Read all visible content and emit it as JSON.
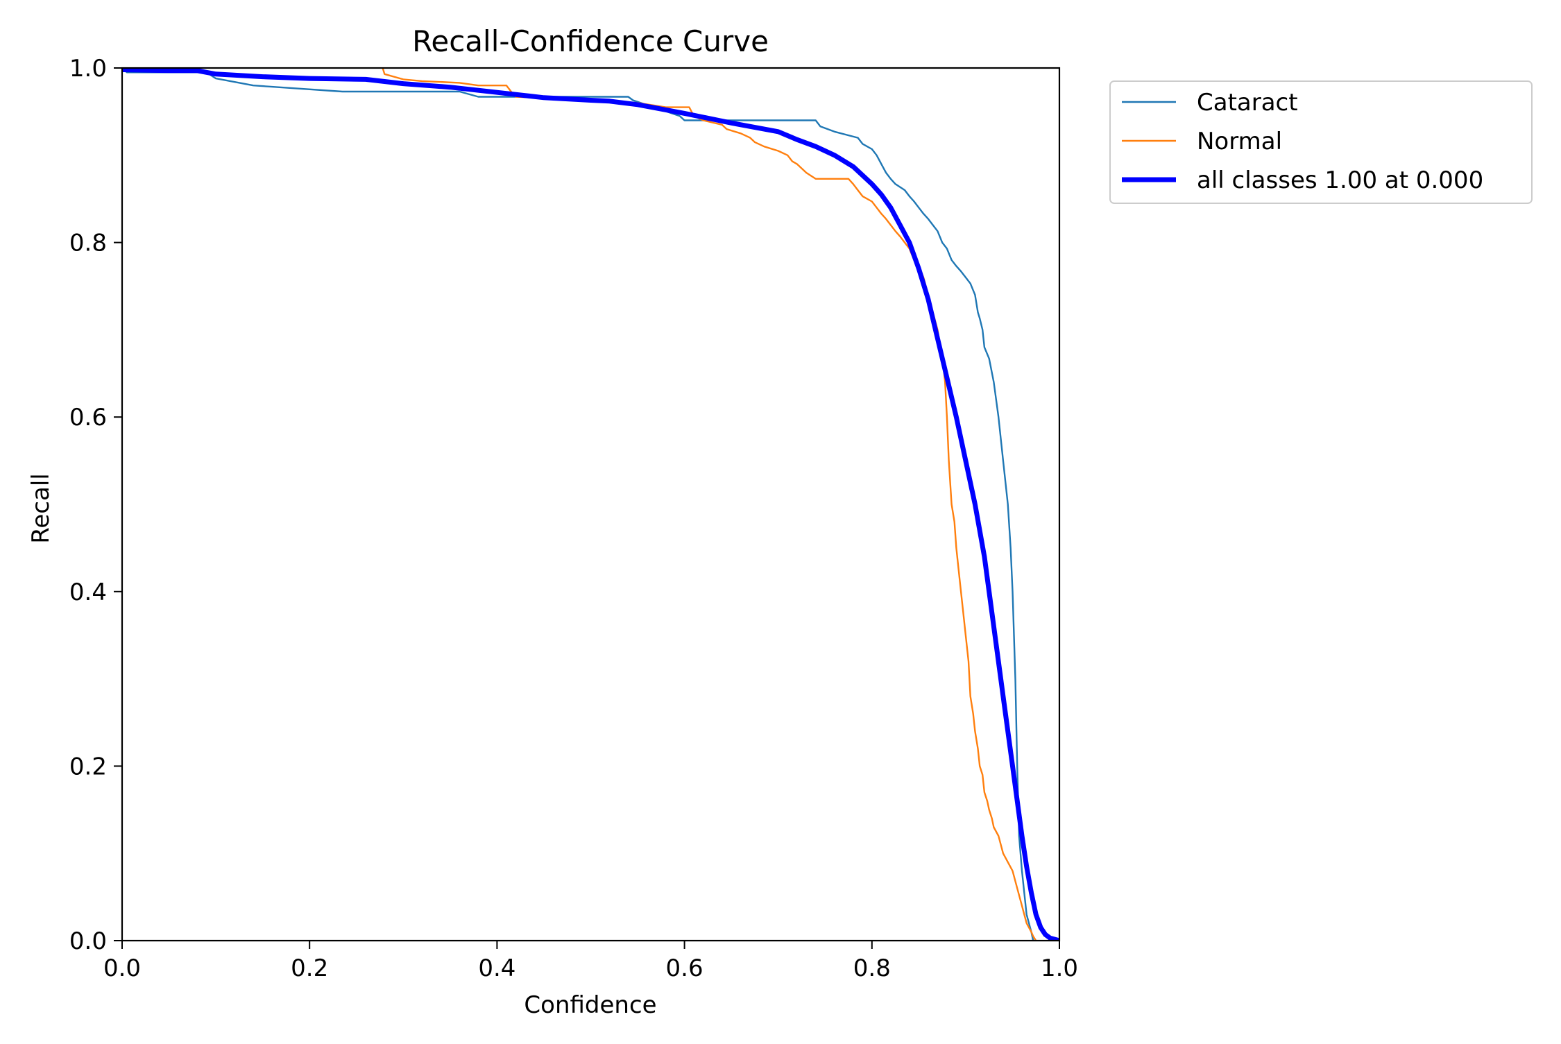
{
  "chart_data": {
    "type": "line",
    "title": "Recall-Confidence Curve",
    "xlabel": "Confidence",
    "ylabel": "Recall",
    "xlim": [
      0,
      1
    ],
    "ylim": [
      0,
      1
    ],
    "xticks": [
      "0.0",
      "0.2",
      "0.4",
      "0.6",
      "0.8",
      "1.0"
    ],
    "yticks": [
      "0.0",
      "0.2",
      "0.4",
      "0.6",
      "0.8",
      "1.0"
    ],
    "grid": false,
    "legend_position": "outside-upper-right",
    "series": [
      {
        "name": "Cataract",
        "color": "#1f77b4",
        "style": "thin",
        "x": [
          0.0,
          0.005,
          0.09,
          0.1,
          0.14,
          0.235,
          0.36,
          0.38,
          0.54,
          0.545,
          0.595,
          0.6,
          0.74,
          0.745,
          0.76,
          0.785,
          0.79,
          0.8,
          0.805,
          0.81,
          0.815,
          0.82,
          0.825,
          0.835,
          0.84,
          0.845,
          0.85,
          0.855,
          0.86,
          0.865,
          0.87,
          0.875,
          0.88,
          0.885,
          0.89,
          0.895,
          0.9,
          0.905,
          0.91,
          0.913,
          0.915,
          0.918,
          0.92,
          0.925,
          0.93,
          0.935,
          0.94,
          0.945,
          0.948,
          0.95,
          0.953,
          0.955,
          0.957,
          0.96,
          0.963,
          0.965,
          0.97,
          0.972
        ],
        "y": [
          1.0,
          0.995,
          0.995,
          0.988,
          0.98,
          0.973,
          0.973,
          0.967,
          0.967,
          0.963,
          0.945,
          0.94,
          0.94,
          0.933,
          0.927,
          0.92,
          0.913,
          0.907,
          0.9,
          0.89,
          0.88,
          0.873,
          0.867,
          0.86,
          0.853,
          0.847,
          0.84,
          0.833,
          0.827,
          0.82,
          0.813,
          0.8,
          0.793,
          0.78,
          0.773,
          0.767,
          0.76,
          0.753,
          0.74,
          0.72,
          0.713,
          0.7,
          0.68,
          0.667,
          0.64,
          0.6,
          0.55,
          0.5,
          0.45,
          0.4,
          0.3,
          0.2,
          0.12,
          0.08,
          0.05,
          0.03,
          0.01,
          0.0
        ]
      },
      {
        "name": "Normal",
        "color": "#ff7f0e",
        "style": "thin",
        "x": [
          0.278,
          0.28,
          0.3,
          0.32,
          0.36,
          0.38,
          0.41,
          0.415,
          0.42,
          0.5,
          0.55,
          0.58,
          0.605,
          0.61,
          0.62,
          0.64,
          0.645,
          0.66,
          0.67,
          0.675,
          0.685,
          0.7,
          0.71,
          0.715,
          0.72,
          0.73,
          0.74,
          0.745,
          0.775,
          0.78,
          0.785,
          0.79,
          0.8,
          0.805,
          0.81,
          0.815,
          0.82,
          0.825,
          0.83,
          0.835,
          0.84,
          0.845,
          0.85,
          0.855,
          0.86,
          0.865,
          0.87,
          0.873,
          0.876,
          0.878,
          0.88,
          0.882,
          0.885,
          0.888,
          0.89,
          0.893,
          0.895,
          0.898,
          0.9,
          0.903,
          0.905,
          0.908,
          0.91,
          0.913,
          0.915,
          0.918,
          0.92,
          0.923,
          0.925,
          0.928,
          0.93,
          0.935,
          0.94,
          0.945,
          0.95,
          0.955,
          0.96,
          0.965,
          0.97,
          0.972,
          0.975
        ],
        "y": [
          1.0,
          0.993,
          0.987,
          0.985,
          0.983,
          0.98,
          0.98,
          0.973,
          0.967,
          0.963,
          0.96,
          0.955,
          0.955,
          0.945,
          0.94,
          0.935,
          0.93,
          0.925,
          0.92,
          0.915,
          0.91,
          0.905,
          0.9,
          0.893,
          0.89,
          0.88,
          0.873,
          0.873,
          0.873,
          0.867,
          0.86,
          0.853,
          0.847,
          0.84,
          0.833,
          0.827,
          0.82,
          0.813,
          0.807,
          0.8,
          0.793,
          0.78,
          0.773,
          0.76,
          0.74,
          0.72,
          0.7,
          0.68,
          0.66,
          0.64,
          0.6,
          0.55,
          0.5,
          0.48,
          0.45,
          0.42,
          0.4,
          0.37,
          0.35,
          0.32,
          0.28,
          0.26,
          0.24,
          0.22,
          0.2,
          0.19,
          0.17,
          0.16,
          0.15,
          0.14,
          0.13,
          0.12,
          0.1,
          0.09,
          0.08,
          0.06,
          0.04,
          0.02,
          0.01,
          0.005,
          0.0
        ]
      },
      {
        "name": "all classes 1.00 at 0.000",
        "color": "#0000ff",
        "style": "thick",
        "x": [
          0.0,
          0.05,
          0.08,
          0.1,
          0.15,
          0.2,
          0.26,
          0.3,
          0.35,
          0.4,
          0.45,
          0.5,
          0.52,
          0.55,
          0.6,
          0.65,
          0.7,
          0.72,
          0.74,
          0.76,
          0.78,
          0.8,
          0.81,
          0.82,
          0.83,
          0.84,
          0.85,
          0.86,
          0.87,
          0.88,
          0.89,
          0.9,
          0.91,
          0.92,
          0.93,
          0.94,
          0.95,
          0.96,
          0.965,
          0.97,
          0.975,
          0.98,
          0.985,
          0.99,
          1.0
        ],
        "y": [
          0.998,
          0.997,
          0.997,
          0.993,
          0.99,
          0.988,
          0.987,
          0.982,
          0.978,
          0.972,
          0.966,
          0.963,
          0.962,
          0.958,
          0.948,
          0.937,
          0.927,
          0.918,
          0.91,
          0.9,
          0.887,
          0.867,
          0.855,
          0.84,
          0.82,
          0.8,
          0.77,
          0.735,
          0.69,
          0.645,
          0.6,
          0.55,
          0.5,
          0.44,
          0.36,
          0.28,
          0.2,
          0.12,
          0.085,
          0.055,
          0.03,
          0.015,
          0.007,
          0.003,
          0.0
        ]
      }
    ]
  }
}
